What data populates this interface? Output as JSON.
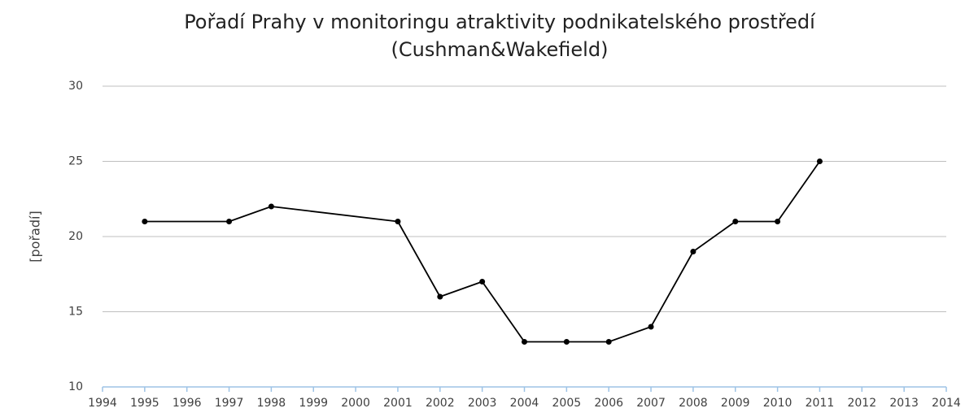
{
  "chart_data": {
    "type": "line",
    "title": "Pořadí Prahy v monitoringu atraktivity podnikatelského prostředí",
    "subtitle": "(Cushman&Wakefield)",
    "y_label": "[pořadí]",
    "x": [
      1995,
      1997,
      1998,
      2001,
      2002,
      2003,
      2004,
      2005,
      2006,
      2007,
      2008,
      2009,
      2010,
      2011
    ],
    "values": [
      21,
      21,
      22,
      21,
      16,
      17,
      13,
      13,
      13,
      14,
      19,
      21,
      21,
      25
    ],
    "color": "#000000",
    "xlim": [
      1994,
      2014
    ],
    "xticks": [
      1994,
      1995,
      1996,
      1997,
      1998,
      1999,
      2000,
      2001,
      2002,
      2003,
      2004,
      2005,
      2006,
      2007,
      2008,
      2009,
      2010,
      2011,
      2012,
      2013,
      2014
    ],
    "ylim": [
      10,
      30
    ],
    "yticks": [
      10,
      15,
      20,
      25,
      30
    ],
    "grid": true
  }
}
